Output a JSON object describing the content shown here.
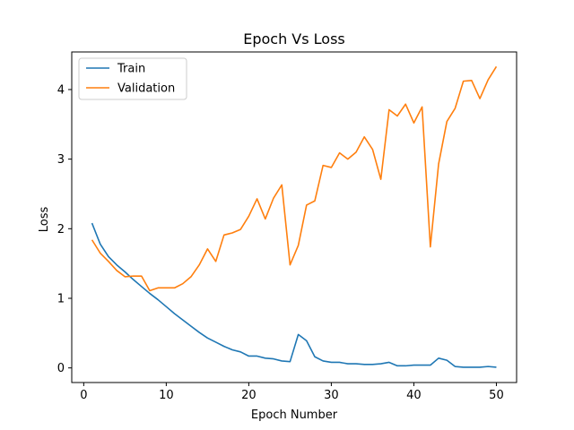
{
  "chart_data": {
    "type": "line",
    "title": "Epoch Vs Loss",
    "xlabel": "Epoch Number",
    "ylabel": "Loss",
    "xlim": [
      -1.45,
      52.45
    ],
    "ylim": [
      -0.21,
      4.54
    ],
    "xticks": [
      0,
      10,
      20,
      30,
      40,
      50
    ],
    "yticks": [
      0,
      1,
      2,
      3,
      4
    ],
    "grid": false,
    "legend_position": "top-left",
    "x": [
      1,
      2,
      3,
      4,
      5,
      6,
      7,
      8,
      9,
      10,
      11,
      12,
      13,
      14,
      15,
      16,
      17,
      18,
      19,
      20,
      21,
      22,
      23,
      24,
      25,
      26,
      27,
      28,
      29,
      30,
      31,
      32,
      33,
      34,
      35,
      36,
      37,
      38,
      39,
      40,
      41,
      42,
      43,
      44,
      45,
      46,
      47,
      48,
      49,
      50
    ],
    "series": [
      {
        "name": "Train",
        "color": "#1f77b4",
        "values": [
          2.08,
          1.78,
          1.6,
          1.48,
          1.38,
          1.27,
          1.17,
          1.07,
          0.98,
          0.88,
          0.78,
          0.69,
          0.6,
          0.51,
          0.43,
          0.37,
          0.31,
          0.26,
          0.23,
          0.17,
          0.17,
          0.14,
          0.13,
          0.1,
          0.09,
          0.48,
          0.39,
          0.16,
          0.1,
          0.08,
          0.08,
          0.06,
          0.06,
          0.05,
          0.05,
          0.06,
          0.08,
          0.03,
          0.03,
          0.04,
          0.04,
          0.04,
          0.14,
          0.11,
          0.02,
          0.01,
          0.01,
          0.01,
          0.02,
          0.01
        ]
      },
      {
        "name": "Validation",
        "color": "#ff7f0e",
        "values": [
          1.84,
          1.65,
          1.53,
          1.4,
          1.31,
          1.32,
          1.32,
          1.11,
          1.15,
          1.15,
          1.15,
          1.21,
          1.31,
          1.48,
          1.71,
          1.53,
          1.91,
          1.94,
          1.99,
          2.18,
          2.43,
          2.14,
          2.44,
          2.63,
          1.48,
          1.76,
          2.34,
          2.4,
          2.91,
          2.88,
          3.09,
          3.0,
          3.1,
          3.32,
          3.14,
          2.71,
          3.71,
          3.62,
          3.79,
          3.52,
          3.75,
          1.74,
          2.93,
          3.54,
          3.73,
          4.12,
          4.13,
          3.87,
          4.14,
          4.33
        ]
      }
    ]
  }
}
